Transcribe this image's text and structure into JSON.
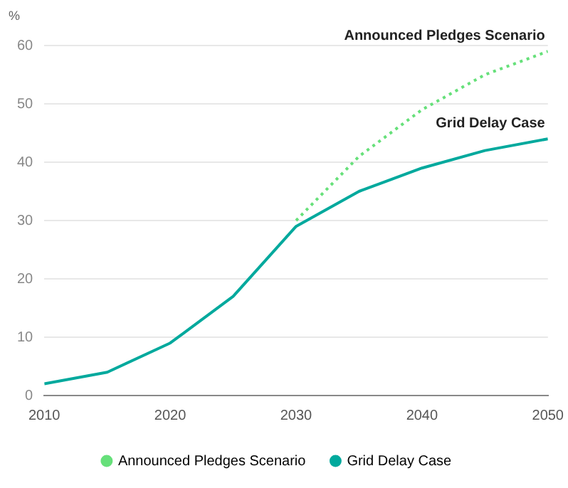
{
  "chart_data": {
    "type": "line",
    "ylabel": "%",
    "x": [
      2010,
      2015,
      2020,
      2025,
      2030,
      2035,
      2040,
      2045,
      2050
    ],
    "series": [
      {
        "name": "Announced Pledges Scenario",
        "color": "#66e07a",
        "line_style": "dotted",
        "values": [
          null,
          null,
          null,
          null,
          30,
          41,
          49,
          55,
          59
        ]
      },
      {
        "name": "Grid Delay Case",
        "color": "#00a99d",
        "line_style": "solid",
        "values": [
          2,
          4,
          9,
          17,
          29,
          35,
          39,
          42,
          44
        ]
      }
    ],
    "xlim": [
      2010,
      2050
    ],
    "xticks": [
      2010,
      2020,
      2030,
      2040,
      2050
    ],
    "ylim": [
      0,
      60
    ],
    "yticks": [
      0,
      10,
      20,
      30,
      40,
      50,
      60
    ],
    "grid": "y",
    "legend": "bottom",
    "marker": "none"
  }
}
